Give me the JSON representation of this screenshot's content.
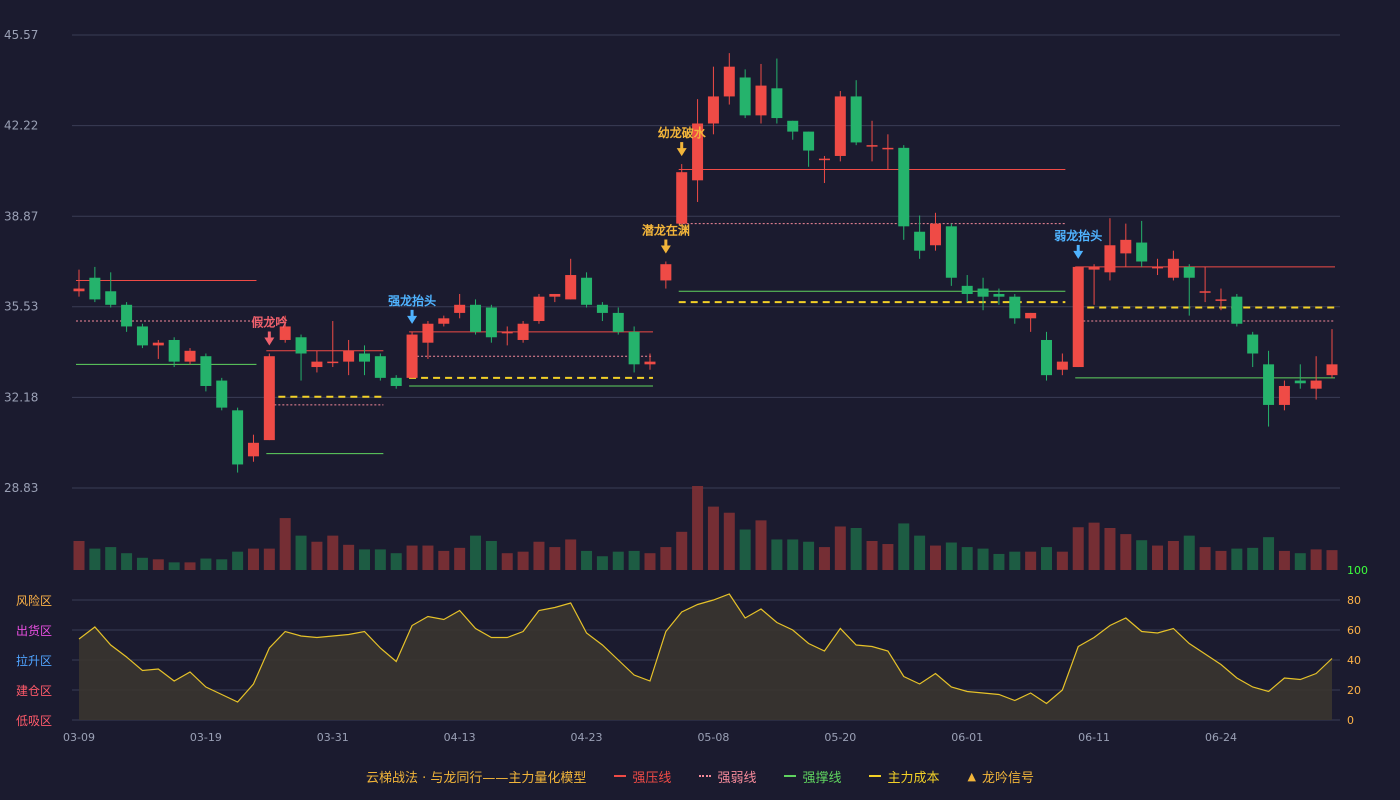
{
  "chart_data": {
    "type": "candlestick",
    "title": "云梯战法 · 与龙同行——主力量化模型",
    "price_axis": {
      "ticks": [
        "45.57",
        "42.22",
        "38.87",
        "35.53",
        "32.18",
        "28.83"
      ],
      "range": [
        28.83,
        45.57
      ]
    },
    "date_ticks": [
      {
        "label": "03-09",
        "index": 0
      },
      {
        "label": "03-19",
        "index": 8
      },
      {
        "label": "03-31",
        "index": 16
      },
      {
        "label": "04-13",
        "index": 24
      },
      {
        "label": "04-23",
        "index": 32
      },
      {
        "label": "05-08",
        "index": 40
      },
      {
        "label": "05-20",
        "index": 48
      },
      {
        "label": "06-01",
        "index": 56
      },
      {
        "label": "06-11",
        "index": 64
      },
      {
        "label": "06-24",
        "index": 72
      }
    ],
    "candles": [
      [
        36.1,
        36.2,
        36.9,
        35.9
      ],
      [
        36.6,
        35.8,
        37.0,
        35.7
      ],
      [
        36.1,
        35.6,
        36.8,
        35.5
      ],
      [
        35.6,
        34.8,
        35.7,
        34.6
      ],
      [
        34.8,
        34.1,
        34.9,
        34.0
      ],
      [
        34.1,
        34.2,
        34.3,
        33.6
      ],
      [
        34.3,
        33.5,
        34.4,
        33.3
      ],
      [
        33.5,
        33.9,
        34.0,
        33.4
      ],
      [
        33.7,
        32.6,
        33.8,
        32.4
      ],
      [
        32.8,
        31.8,
        32.9,
        31.7
      ],
      [
        31.7,
        29.7,
        31.8,
        29.4
      ],
      [
        30.0,
        30.5,
        30.8,
        29.8
      ],
      [
        30.6,
        33.7,
        33.8,
        30.6
      ],
      [
        34.3,
        34.8,
        35.2,
        34.2
      ],
      [
        34.4,
        33.8,
        34.5,
        32.8
      ],
      [
        33.3,
        33.5,
        33.9,
        33.1
      ],
      [
        33.5,
        33.5,
        35.0,
        33.3
      ],
      [
        33.5,
        33.9,
        34.3,
        33.0
      ],
      [
        33.8,
        33.5,
        34.1,
        33.0
      ],
      [
        33.7,
        32.9,
        33.8,
        32.8
      ],
      [
        32.9,
        32.6,
        33.0,
        32.5
      ],
      [
        32.9,
        34.5,
        34.6,
        32.9
      ],
      [
        34.2,
        34.9,
        35.0,
        33.6
      ],
      [
        34.9,
        35.1,
        35.2,
        34.8
      ],
      [
        35.3,
        35.6,
        36.0,
        35.1
      ],
      [
        35.6,
        34.6,
        35.8,
        34.5
      ],
      [
        35.5,
        34.4,
        35.6,
        34.2
      ],
      [
        34.6,
        34.6,
        34.8,
        34.1
      ],
      [
        34.3,
        34.9,
        35.0,
        34.2
      ],
      [
        35.0,
        35.9,
        36.0,
        34.9
      ],
      [
        35.9,
        36.0,
        36.0,
        35.7
      ],
      [
        35.8,
        36.7,
        37.3,
        35.8
      ],
      [
        36.6,
        35.6,
        36.8,
        35.5
      ],
      [
        35.6,
        35.3,
        35.7,
        35.0
      ],
      [
        35.3,
        34.6,
        35.5,
        34.5
      ],
      [
        34.6,
        33.4,
        34.8,
        33.1
      ],
      [
        33.4,
        33.5,
        33.8,
        33.2
      ],
      [
        36.5,
        37.1,
        37.2,
        36.2
      ],
      [
        38.6,
        40.5,
        40.8,
        38.5
      ],
      [
        40.2,
        42.3,
        43.2,
        39.4
      ],
      [
        42.3,
        43.3,
        44.4,
        41.9
      ],
      [
        43.3,
        44.4,
        44.9,
        43.0
      ],
      [
        44.0,
        42.6,
        44.3,
        42.5
      ],
      [
        42.6,
        43.7,
        44.5,
        42.3
      ],
      [
        43.6,
        42.5,
        44.7,
        42.3
      ],
      [
        42.4,
        42.0,
        42.4,
        41.7
      ],
      [
        42.0,
        41.3,
        42.0,
        40.7
      ],
      [
        41.0,
        41.0,
        41.1,
        40.1
      ],
      [
        41.1,
        43.3,
        43.5,
        40.9
      ],
      [
        43.3,
        41.6,
        43.9,
        41.5
      ],
      [
        41.5,
        41.5,
        42.4,
        40.9
      ],
      [
        41.4,
        41.4,
        41.9,
        40.6
      ],
      [
        41.4,
        38.5,
        41.5,
        38.0
      ],
      [
        38.3,
        37.6,
        38.9,
        37.3
      ],
      [
        37.8,
        38.6,
        39.0,
        37.6
      ],
      [
        38.5,
        36.6,
        38.6,
        36.3
      ],
      [
        36.3,
        36.0,
        36.7,
        35.7
      ],
      [
        36.2,
        35.9,
        36.6,
        35.4
      ],
      [
        36.0,
        35.9,
        36.2,
        35.6
      ],
      [
        35.9,
        35.1,
        36.0,
        34.9
      ],
      [
        35.1,
        35.3,
        35.3,
        34.6
      ],
      [
        34.3,
        33.0,
        34.6,
        32.8
      ],
      [
        33.2,
        33.5,
        33.8,
        33.0
      ],
      [
        33.3,
        37.0,
        37.0,
        33.3
      ],
      [
        36.9,
        37.0,
        37.1,
        35.6
      ],
      [
        36.8,
        37.8,
        38.8,
        36.5
      ],
      [
        37.5,
        38.0,
        38.6,
        37.0
      ],
      [
        37.9,
        37.2,
        38.7,
        37.0
      ],
      [
        37.0,
        37.0,
        37.3,
        36.7
      ],
      [
        36.6,
        37.3,
        37.6,
        36.5
      ],
      [
        37.0,
        36.6,
        37.1,
        35.2
      ],
      [
        36.1,
        36.1,
        37.0,
        35.7
      ],
      [
        35.8,
        35.8,
        36.2,
        35.4
      ],
      [
        35.9,
        34.9,
        36.0,
        34.8
      ],
      [
        34.5,
        33.8,
        34.6,
        33.3
      ],
      [
        33.4,
        31.9,
        33.9,
        31.1
      ],
      [
        31.9,
        32.6,
        32.8,
        31.7
      ],
      [
        32.8,
        32.7,
        33.4,
        32.5
      ],
      [
        32.5,
        32.8,
        33.7,
        32.1
      ],
      [
        33.0,
        33.4,
        34.7,
        32.9
      ]
    ],
    "volume": [
      38,
      28,
      30,
      22,
      16,
      14,
      10,
      10,
      15,
      14,
      24,
      28,
      28,
      68,
      45,
      37,
      45,
      33,
      27,
      27,
      22,
      32,
      32,
      25,
      29,
      45,
      38,
      22,
      24,
      37,
      30,
      40,
      25,
      18,
      24,
      25,
      22,
      30,
      50,
      110,
      83,
      75,
      53,
      65,
      40,
      40,
      37,
      30,
      57,
      55,
      38,
      34,
      61,
      45,
      32,
      36,
      30,
      28,
      21,
      24,
      24,
      30,
      24,
      56,
      62,
      55,
      47,
      39,
      32,
      38,
      45,
      30,
      25,
      28,
      29,
      43,
      25,
      22,
      27,
      26
    ],
    "oscillator": {
      "axis_ticks": [
        "100",
        "80",
        "60",
        "40",
        "20",
        "0"
      ],
      "zone_labels": [
        "风险区",
        "出货区",
        "拉升区",
        "建仓区",
        "低吸区"
      ],
      "values": [
        54,
        62,
        50,
        42,
        33,
        34,
        26,
        32,
        22,
        17,
        12,
        24,
        48,
        59,
        56,
        55,
        56,
        57,
        59,
        48,
        39,
        63,
        69,
        67,
        73,
        61,
        55,
        55,
        59,
        73,
        75,
        78,
        58,
        50,
        40,
        30,
        26,
        59,
        72,
        77,
        80,
        84,
        68,
        74,
        65,
        60,
        51,
        46,
        61,
        50,
        49,
        46,
        29,
        24,
        31,
        22,
        19,
        18,
        17,
        13,
        18,
        11,
        20,
        49,
        55,
        63,
        68,
        59,
        58,
        61,
        51,
        44,
        37,
        28,
        22,
        19,
        28,
        27,
        31,
        41
      ],
      "line_color": "#e6c229"
    },
    "levels": [
      {
        "type": "strong_pressure",
        "from": 0,
        "to": 11,
        "y": 36.5
      },
      {
        "type": "weak_pressure",
        "from": 0,
        "to": 11,
        "y": 35.0
      },
      {
        "type": "support",
        "from": 0,
        "to": 11,
        "y": 33.4
      },
      {
        "type": "weak_pressure",
        "from": 12,
        "to": 19,
        "y": 31.9
      },
      {
        "type": "main_cost",
        "from": 12,
        "to": 19,
        "y": 32.2
      },
      {
        "type": "support",
        "from": 12,
        "to": 19,
        "y": 30.1
      },
      {
        "type": "strong_pressure",
        "from": 12,
        "to": 19,
        "y": 33.9
      },
      {
        "type": "weak_pressure",
        "from": 21,
        "to": 36,
        "y": 33.7
      },
      {
        "type": "main_cost",
        "from": 21,
        "to": 36,
        "y": 32.9
      },
      {
        "type": "support",
        "from": 21,
        "to": 36,
        "y": 32.6
      },
      {
        "type": "strong_pressure",
        "from": 21,
        "to": 36,
        "y": 34.6
      },
      {
        "type": "strong_pressure",
        "from": 38,
        "to": 62,
        "y": 40.6
      },
      {
        "type": "weak_pressure",
        "from": 38,
        "to": 62,
        "y": 38.6
      },
      {
        "type": "support",
        "from": 38,
        "to": 62,
        "y": 36.1
      },
      {
        "type": "main_cost",
        "from": 38,
        "to": 62,
        "y": 35.7
      },
      {
        "type": "strong_pressure",
        "from": 63,
        "to": 79,
        "y": 37.0
      },
      {
        "type": "main_cost",
        "from": 63,
        "to": 79,
        "y": 35.5
      },
      {
        "type": "weak_pressure",
        "from": 63,
        "to": 79,
        "y": 35.0
      },
      {
        "type": "support",
        "from": 63,
        "to": 79,
        "y": 32.9
      }
    ],
    "signals": [
      {
        "index": 12,
        "label": "假龙吟",
        "color": "#f0616d"
      },
      {
        "index": 21,
        "label": "强龙抬头",
        "color": "#4fb3ff"
      },
      {
        "index": 37,
        "label": "潜龙在渊",
        "color": "#f2b53a"
      },
      {
        "index": 38,
        "label": "幼龙破水",
        "color": "#f2b53a"
      },
      {
        "index": 63,
        "label": "弱龙抬头",
        "color": "#4fb3ff"
      }
    ],
    "legend": [
      {
        "label": "云梯战法 · 与龙同行——主力量化模型",
        "kind": "title"
      },
      {
        "label": "强压线",
        "kind": "solid",
        "color": "#ef4b46"
      },
      {
        "label": "强弱线",
        "kind": "dotted",
        "color": "#f58a9a"
      },
      {
        "label": "强撑线",
        "kind": "solid",
        "color": "#5fd35f"
      },
      {
        "label": "主力成本",
        "kind": "dashed",
        "color": "#f2d027"
      },
      {
        "label": "龙吟信号",
        "kind": "triangle",
        "color": "#f2b53a"
      }
    ],
    "colors": {
      "up": "#ef4b46",
      "down": "#25b36c",
      "grid": "#3a3c55",
      "axis_text": "#9aa0b5",
      "oscillator_right_axis": "#ffb347",
      "oscillator_top_tick": "#3cff3c"
    }
  }
}
